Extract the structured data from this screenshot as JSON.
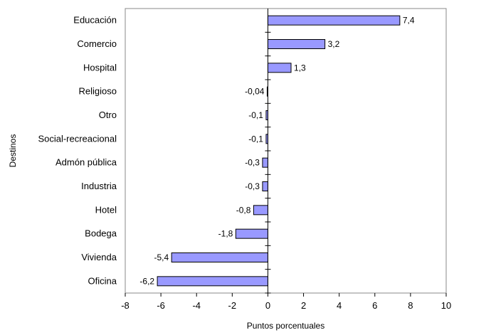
{
  "chart_data": {
    "type": "bar",
    "orientation": "horizontal",
    "title": "",
    "xlabel": "Puntos porcentuales",
    "ylabel": "Destinos",
    "categories": [
      "Educación",
      "Comercio",
      "Hospital",
      "Religioso",
      "Otro",
      "Social-recreacional",
      "Admón pública",
      "Industria",
      "Hotel",
      "Bodega",
      "Vivienda",
      "Oficina"
    ],
    "values": [
      7.4,
      3.2,
      1.3,
      -0.04,
      -0.1,
      -0.1,
      -0.3,
      -0.3,
      -0.8,
      -1.8,
      -5.4,
      -6.2
    ],
    "data_labels": [
      "7,4",
      "3,2",
      "1,3",
      "-0,04",
      "-0,1",
      "-0,1",
      "-0,3",
      "-0,3",
      "-0,8",
      "-1,8",
      "-5,4",
      "-6,2"
    ],
    "xlim": [
      -8,
      10
    ],
    "xticks": [
      -8,
      -6,
      -4,
      -2,
      0,
      2,
      4,
      6,
      8,
      10
    ],
    "xtick_labels": [
      "-8",
      "-6",
      "-4",
      "-2",
      "0",
      "2",
      "4",
      "6",
      "8",
      "10"
    ],
    "grid": false,
    "legend": "none",
    "colors": {
      "bar_fill": "#9999ff",
      "bar_stroke": "#000000",
      "axis": "#000000",
      "frame": "#888888"
    }
  }
}
